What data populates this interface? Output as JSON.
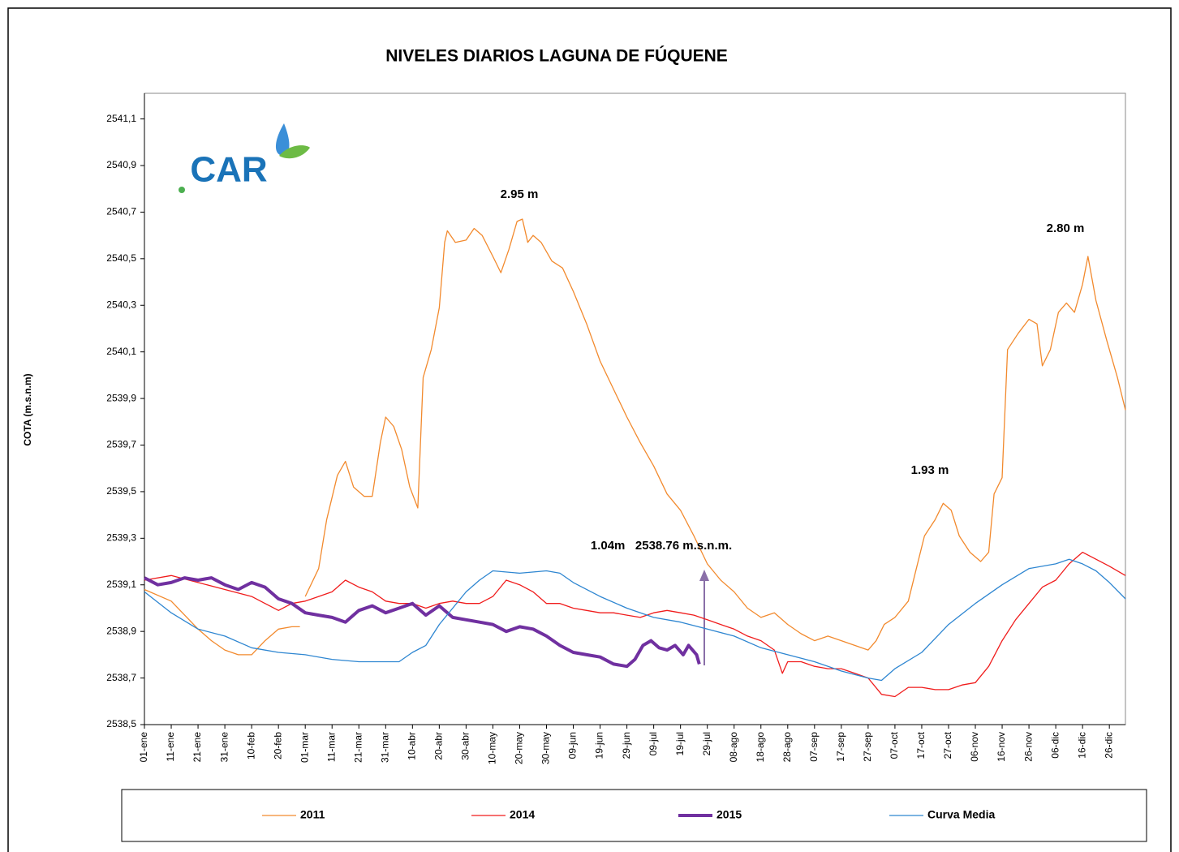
{
  "chart_data": {
    "type": "line",
    "title": "NIVELES DIARIOS LAGUNA DE FÚQUENE",
    "y_label": "COTA (m.s.n.m)",
    "logo": "CAR",
    "annotations": [
      "2.95 m",
      "2.80 m",
      "1.93 m",
      "1.04m   2538.76 m.s.n.m."
    ],
    "xlim": [
      0,
      366
    ],
    "ylim": [
      2538.5,
      2541.21
    ],
    "grid": false,
    "legend": "bottom",
    "xticks": [
      {
        "value": 0,
        "label": "01-ene"
      },
      {
        "value": 10,
        "label": "11-ene"
      },
      {
        "value": 20,
        "label": "21-ene"
      },
      {
        "value": 30,
        "label": "31-ene"
      },
      {
        "value": 40,
        "label": "10-feb"
      },
      {
        "value": 50,
        "label": "20-feb"
      },
      {
        "value": 60,
        "label": "01-mar"
      },
      {
        "value": 70,
        "label": "11-mar"
      },
      {
        "value": 80,
        "label": "21-mar"
      },
      {
        "value": 90,
        "label": "31-mar"
      },
      {
        "value": 100,
        "label": "10-abr"
      },
      {
        "value": 110,
        "label": "20-abr"
      },
      {
        "value": 120,
        "label": "30-abr"
      },
      {
        "value": 130,
        "label": "10-may"
      },
      {
        "value": 140,
        "label": "20-may"
      },
      {
        "value": 150,
        "label": "30-may"
      },
      {
        "value": 160,
        "label": "09-jun"
      },
      {
        "value": 170,
        "label": "19-jun"
      },
      {
        "value": 180,
        "label": "29-jun"
      },
      {
        "value": 190,
        "label": "09-jul"
      },
      {
        "value": 200,
        "label": "19-jul"
      },
      {
        "value": 210,
        "label": "29-jul"
      },
      {
        "value": 220,
        "label": "08-ago"
      },
      {
        "value": 230,
        "label": "18-ago"
      },
      {
        "value": 240,
        "label": "28-ago"
      },
      {
        "value": 250,
        "label": "07-sep"
      },
      {
        "value": 260,
        "label": "17-sep"
      },
      {
        "value": 270,
        "label": "27-sep"
      },
      {
        "value": 280,
        "label": "07-oct"
      },
      {
        "value": 290,
        "label": "17-oct"
      },
      {
        "value": 300,
        "label": "27-oct"
      },
      {
        "value": 310,
        "label": "06-nov"
      },
      {
        "value": 320,
        "label": "16-nov"
      },
      {
        "value": 330,
        "label": "26-nov"
      },
      {
        "value": 340,
        "label": "06-dic"
      },
      {
        "value": 350,
        "label": "16-dic"
      },
      {
        "value": 360,
        "label": "26-dic"
      }
    ],
    "yticks": [
      {
        "value": 2538.5,
        "label": "2538,5"
      },
      {
        "value": 2538.7,
        "label": "2538,7"
      },
      {
        "value": 2538.9,
        "label": "2538,9"
      },
      {
        "value": 2539.1,
        "label": "2539,1"
      },
      {
        "value": 2539.3,
        "label": "2539,3"
      },
      {
        "value": 2539.5,
        "label": "2539,5"
      },
      {
        "value": 2539.7,
        "label": "2539,7"
      },
      {
        "value": 2539.9,
        "label": "2539,9"
      },
      {
        "value": 2540.1,
        "label": "2540,1"
      },
      {
        "value": 2540.3,
        "label": "2540,3"
      },
      {
        "value": 2540.5,
        "label": "2540,5"
      },
      {
        "value": 2540.7,
        "label": "2540,7"
      },
      {
        "value": 2540.9,
        "label": "2540,9"
      },
      {
        "value": 2541.1,
        "label": "2541,1"
      }
    ],
    "series": [
      {
        "name": "2011",
        "color": "#f28a2e",
        "width": 1.3,
        "x": [
          0,
          10,
          20,
          25,
          30,
          35,
          40,
          45,
          50,
          55,
          58,
          59,
          60,
          65,
          68,
          72,
          75,
          78,
          82,
          85,
          88,
          90,
          93,
          96,
          99,
          102,
          104,
          107,
          110,
          112,
          113,
          116,
          120,
          123,
          126,
          130,
          133,
          136,
          139,
          141,
          143,
          145,
          148,
          152,
          156,
          160,
          165,
          170,
          175,
          180,
          185,
          190,
          195,
          200,
          205,
          210,
          215,
          220,
          225,
          230,
          235,
          240,
          245,
          250,
          255,
          260,
          265,
          270,
          273,
          276,
          280,
          285,
          288,
          291,
          295,
          298,
          301,
          304,
          308,
          312,
          315,
          317,
          320,
          322,
          326,
          330,
          333,
          335,
          338,
          341,
          344,
          347,
          350,
          352,
          355,
          359,
          363,
          366
        ],
        "values": [
          2539.08,
          2539.03,
          2538.91,
          2538.86,
          2538.82,
          2538.8,
          2538.8,
          2538.86,
          2538.91,
          2538.92,
          2538.92,
          null,
          2539.05,
          2539.17,
          2539.38,
          2539.57,
          2539.63,
          2539.52,
          2539.48,
          2539.48,
          2539.71,
          2539.82,
          2539.78,
          2539.68,
          2539.52,
          2539.43,
          2539.99,
          2540.11,
          2540.29,
          2540.57,
          2540.62,
          2540.57,
          2540.58,
          2540.63,
          2540.6,
          2540.51,
          2540.44,
          2540.54,
          2540.66,
          2540.67,
          2540.57,
          2540.6,
          2540.57,
          2540.49,
          2540.46,
          2540.36,
          2540.22,
          2540.06,
          2539.94,
          2539.82,
          2539.71,
          2539.61,
          2539.49,
          2539.42,
          2539.31,
          2539.19,
          2539.12,
          2539.07,
          2539.0,
          2538.96,
          2538.98,
          2538.93,
          2538.89,
          2538.86,
          2538.88,
          2538.86,
          2538.84,
          2538.82,
          2538.86,
          2538.93,
          2538.96,
          2539.03,
          2539.17,
          2539.31,
          2539.38,
          2539.45,
          2539.42,
          2539.31,
          2539.24,
          2539.2,
          2539.24,
          2539.49,
          2539.56,
          2540.11,
          2540.18,
          2540.24,
          2540.22,
          2540.04,
          2540.11,
          2540.27,
          2540.31,
          2540.27,
          2540.39,
          2540.51,
          2540.32,
          2540.15,
          2539.99,
          2539.85
        ]
      },
      {
        "name": "2014",
        "color": "#f01c1c",
        "width": 1.3,
        "x": [
          0,
          10,
          20,
          30,
          40,
          45,
          50,
          55,
          60,
          65,
          70,
          75,
          80,
          85,
          90,
          95,
          100,
          105,
          110,
          115,
          120,
          125,
          130,
          135,
          140,
          145,
          150,
          155,
          160,
          165,
          170,
          175,
          180,
          185,
          190,
          195,
          200,
          205,
          210,
          215,
          220,
          225,
          230,
          235,
          238,
          240,
          245,
          250,
          255,
          260,
          265,
          270,
          275,
          280,
          285,
          290,
          295,
          300,
          305,
          310,
          315,
          320,
          325,
          330,
          335,
          340,
          345,
          350,
          355,
          360,
          366
        ],
        "values": [
          2539.12,
          2539.14,
          2539.11,
          2539.08,
          2539.05,
          2539.02,
          2538.99,
          2539.02,
          2539.03,
          2539.05,
          2539.07,
          2539.12,
          2539.09,
          2539.07,
          2539.03,
          2539.02,
          2539.02,
          2539.0,
          2539.02,
          2539.03,
          2539.02,
          2539.02,
          2539.05,
          2539.12,
          2539.1,
          2539.07,
          2539.02,
          2539.02,
          2539.0,
          2538.99,
          2538.98,
          2538.98,
          2538.97,
          2538.96,
          2538.98,
          2538.99,
          2538.98,
          2538.97,
          2538.95,
          2538.93,
          2538.91,
          2538.88,
          2538.86,
          2538.82,
          2538.72,
          2538.77,
          2538.77,
          2538.75,
          2538.74,
          2538.74,
          2538.72,
          2538.7,
          2538.63,
          2538.62,
          2538.66,
          2538.66,
          2538.65,
          2538.65,
          2538.67,
          2538.68,
          2538.75,
          2538.86,
          2538.95,
          2539.02,
          2539.09,
          2539.12,
          2539.19,
          2539.24,
          2539.21,
          2539.18,
          2539.14
        ]
      },
      {
        "name": "2015",
        "color": "#7030a0",
        "width": 4,
        "x": [
          0,
          5,
          10,
          15,
          20,
          25,
          30,
          35,
          40,
          45,
          50,
          55,
          60,
          65,
          70,
          75,
          80,
          85,
          90,
          95,
          100,
          105,
          110,
          115,
          120,
          125,
          130,
          135,
          140,
          145,
          150,
          155,
          160,
          165,
          170,
          175,
          180,
          183,
          186,
          189,
          192,
          195,
          198,
          201,
          203,
          206,
          207
        ],
        "values": [
          2539.13,
          2539.1,
          2539.11,
          2539.13,
          2539.12,
          2539.13,
          2539.1,
          2539.08,
          2539.11,
          2539.09,
          2539.04,
          2539.02,
          2538.98,
          2538.97,
          2538.96,
          2538.94,
          2538.99,
          2539.01,
          2538.98,
          2539.0,
          2539.02,
          2538.97,
          2539.01,
          2538.96,
          2538.95,
          2538.94,
          2538.93,
          2538.9,
          2538.92,
          2538.91,
          2538.88,
          2538.84,
          2538.81,
          2538.8,
          2538.79,
          2538.76,
          2538.75,
          2538.78,
          2538.84,
          2538.86,
          2538.83,
          2538.82,
          2538.84,
          2538.8,
          2538.84,
          2538.8,
          2538.76
        ]
      },
      {
        "name": "Curva Media",
        "color": "#2e86d1",
        "width": 1.3,
        "x": [
          0,
          10,
          20,
          30,
          40,
          50,
          60,
          70,
          80,
          90,
          95,
          100,
          105,
          110,
          115,
          120,
          125,
          130,
          140,
          150,
          155,
          160,
          170,
          180,
          190,
          200,
          210,
          220,
          230,
          240,
          250,
          260,
          270,
          275,
          280,
          290,
          300,
          310,
          320,
          330,
          340,
          345,
          350,
          355,
          360,
          366
        ],
        "values": [
          2539.07,
          2538.98,
          2538.91,
          2538.88,
          2538.83,
          2538.81,
          2538.8,
          2538.78,
          2538.77,
          2538.77,
          2538.77,
          2538.81,
          2538.84,
          2538.93,
          2539.0,
          2539.07,
          2539.12,
          2539.16,
          2539.15,
          2539.16,
          2539.15,
          2539.11,
          2539.05,
          2539.0,
          2538.96,
          2538.94,
          2538.91,
          2538.88,
          2538.83,
          2538.8,
          2538.77,
          2538.73,
          2538.7,
          2538.69,
          2538.74,
          2538.81,
          2538.93,
          2539.02,
          2539.1,
          2539.17,
          2539.19,
          2539.21,
          2539.19,
          2539.16,
          2539.11,
          2539.04
        ]
      }
    ]
  }
}
